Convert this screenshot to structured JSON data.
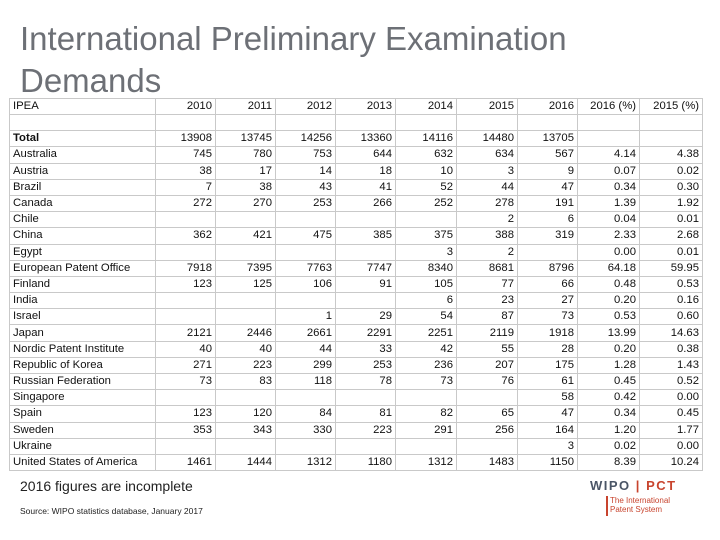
{
  "title": "International Preliminary Examination Demands",
  "table": {
    "headers": [
      "IPEA",
      "2010",
      "2011",
      "2012",
      "2013",
      "2014",
      "2015",
      "2016",
      "2016 (%)",
      "2015 (%)"
    ],
    "rows": [
      [
        "Total",
        "13908",
        "13745",
        "14256",
        "13360",
        "14116",
        "14480",
        "13705",
        "",
        ""
      ],
      [
        "Australia",
        "745",
        "780",
        "753",
        "644",
        "632",
        "634",
        "567",
        "4.14",
        "4.38"
      ],
      [
        "Austria",
        "38",
        "17",
        "14",
        "18",
        "10",
        "3",
        "9",
        "0.07",
        "0.02"
      ],
      [
        "Brazil",
        "7",
        "38",
        "43",
        "41",
        "52",
        "44",
        "47",
        "0.34",
        "0.30"
      ],
      [
        "Canada",
        "272",
        "270",
        "253",
        "266",
        "252",
        "278",
        "191",
        "1.39",
        "1.92"
      ],
      [
        "Chile",
        "",
        "",
        "",
        "",
        "",
        "2",
        "6",
        "0.04",
        "0.01"
      ],
      [
        "China",
        "362",
        "421",
        "475",
        "385",
        "375",
        "388",
        "319",
        "2.33",
        "2.68"
      ],
      [
        "Egypt",
        "",
        "",
        "",
        "",
        "3",
        "2",
        "",
        "0.00",
        "0.01"
      ],
      [
        "European Patent Office",
        "7918",
        "7395",
        "7763",
        "7747",
        "8340",
        "8681",
        "8796",
        "64.18",
        "59.95"
      ],
      [
        "Finland",
        "123",
        "125",
        "106",
        "91",
        "105",
        "77",
        "66",
        "0.48",
        "0.53"
      ],
      [
        "India",
        "",
        "",
        "",
        "",
        "6",
        "23",
        "27",
        "0.20",
        "0.16"
      ],
      [
        "Israel",
        "",
        "",
        "1",
        "29",
        "54",
        "87",
        "73",
        "0.53",
        "0.60"
      ],
      [
        "Japan",
        "2121",
        "2446",
        "2661",
        "2291",
        "2251",
        "2119",
        "1918",
        "13.99",
        "14.63"
      ],
      [
        "Nordic Patent Institute",
        "40",
        "40",
        "44",
        "33",
        "42",
        "55",
        "28",
        "0.20",
        "0.38"
      ],
      [
        "Republic of Korea",
        "271",
        "223",
        "299",
        "253",
        "236",
        "207",
        "175",
        "1.28",
        "1.43"
      ],
      [
        "Russian Federation",
        "73",
        "83",
        "118",
        "78",
        "73",
        "76",
        "61",
        "0.45",
        "0.52"
      ],
      [
        "Singapore",
        "",
        "",
        "",
        "",
        "",
        "",
        "58",
        "0.42",
        "0.00"
      ],
      [
        "Spain",
        "123",
        "120",
        "84",
        "81",
        "82",
        "65",
        "47",
        "0.34",
        "0.45"
      ],
      [
        "Sweden",
        "353",
        "343",
        "330",
        "223",
        "291",
        "256",
        "164",
        "1.20",
        "1.77"
      ],
      [
        "Ukraine",
        "",
        "",
        "",
        "",
        "",
        "",
        "3",
        "0.02",
        "0.00"
      ],
      [
        "United States of America",
        "1461",
        "1444",
        "1312",
        "1180",
        "1312",
        "1483",
        "1150",
        "8.39",
        "10.24"
      ]
    ]
  },
  "note": "2016 figures are incomplete",
  "source": "Source: WIPO statistics database, January 2017",
  "logo": {
    "wipo": "WIPO",
    "separator": "|",
    "pct": "PCT",
    "tagline_line1": "The International",
    "tagline_line2": "Patent System"
  },
  "colors": {
    "title": "#6d7076",
    "logo_accent": "#c8442e",
    "logo_text": "#4a5566"
  }
}
